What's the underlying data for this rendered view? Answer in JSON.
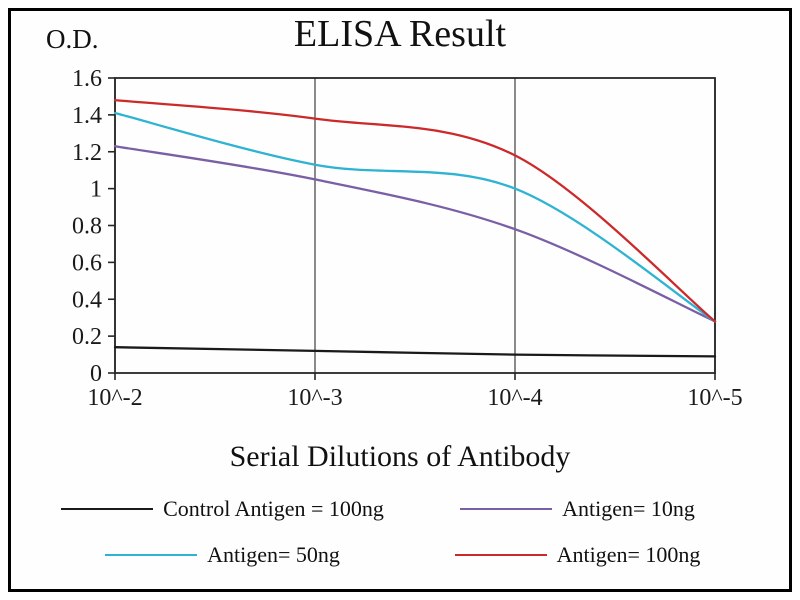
{
  "chart_data": {
    "type": "line",
    "title": "ELISA Result",
    "xlabel": "Serial Dilutions of Antibody",
    "ylabel": "O.D.",
    "x_ticks": [
      "10^-2",
      "10^-3",
      "10^-4",
      "10^-5"
    ],
    "y_ticks": [
      0,
      0.2,
      0.4,
      0.6,
      0.8,
      1,
      1.2,
      1.4,
      1.6
    ],
    "ylim": [
      0,
      1.6
    ],
    "grid": "vertical-only",
    "legend_position": "bottom",
    "line_style": "smooth",
    "series": [
      {
        "name": "Control Antigen = 100ng",
        "color": "#1a1a1a",
        "values": [
          0.14,
          0.12,
          0.1,
          0.09
        ]
      },
      {
        "name": "Antigen= 10ng",
        "color": "#7a5fa5",
        "values": [
          1.23,
          1.05,
          0.78,
          0.28
        ]
      },
      {
        "name": "Antigen= 50ng",
        "color": "#2fb3d2",
        "values": [
          1.41,
          1.13,
          1.0,
          0.28
        ]
      },
      {
        "name": "Antigen= 100ng",
        "color": "#cc2a2a",
        "values": [
          1.48,
          1.38,
          1.18,
          0.28
        ]
      }
    ]
  }
}
